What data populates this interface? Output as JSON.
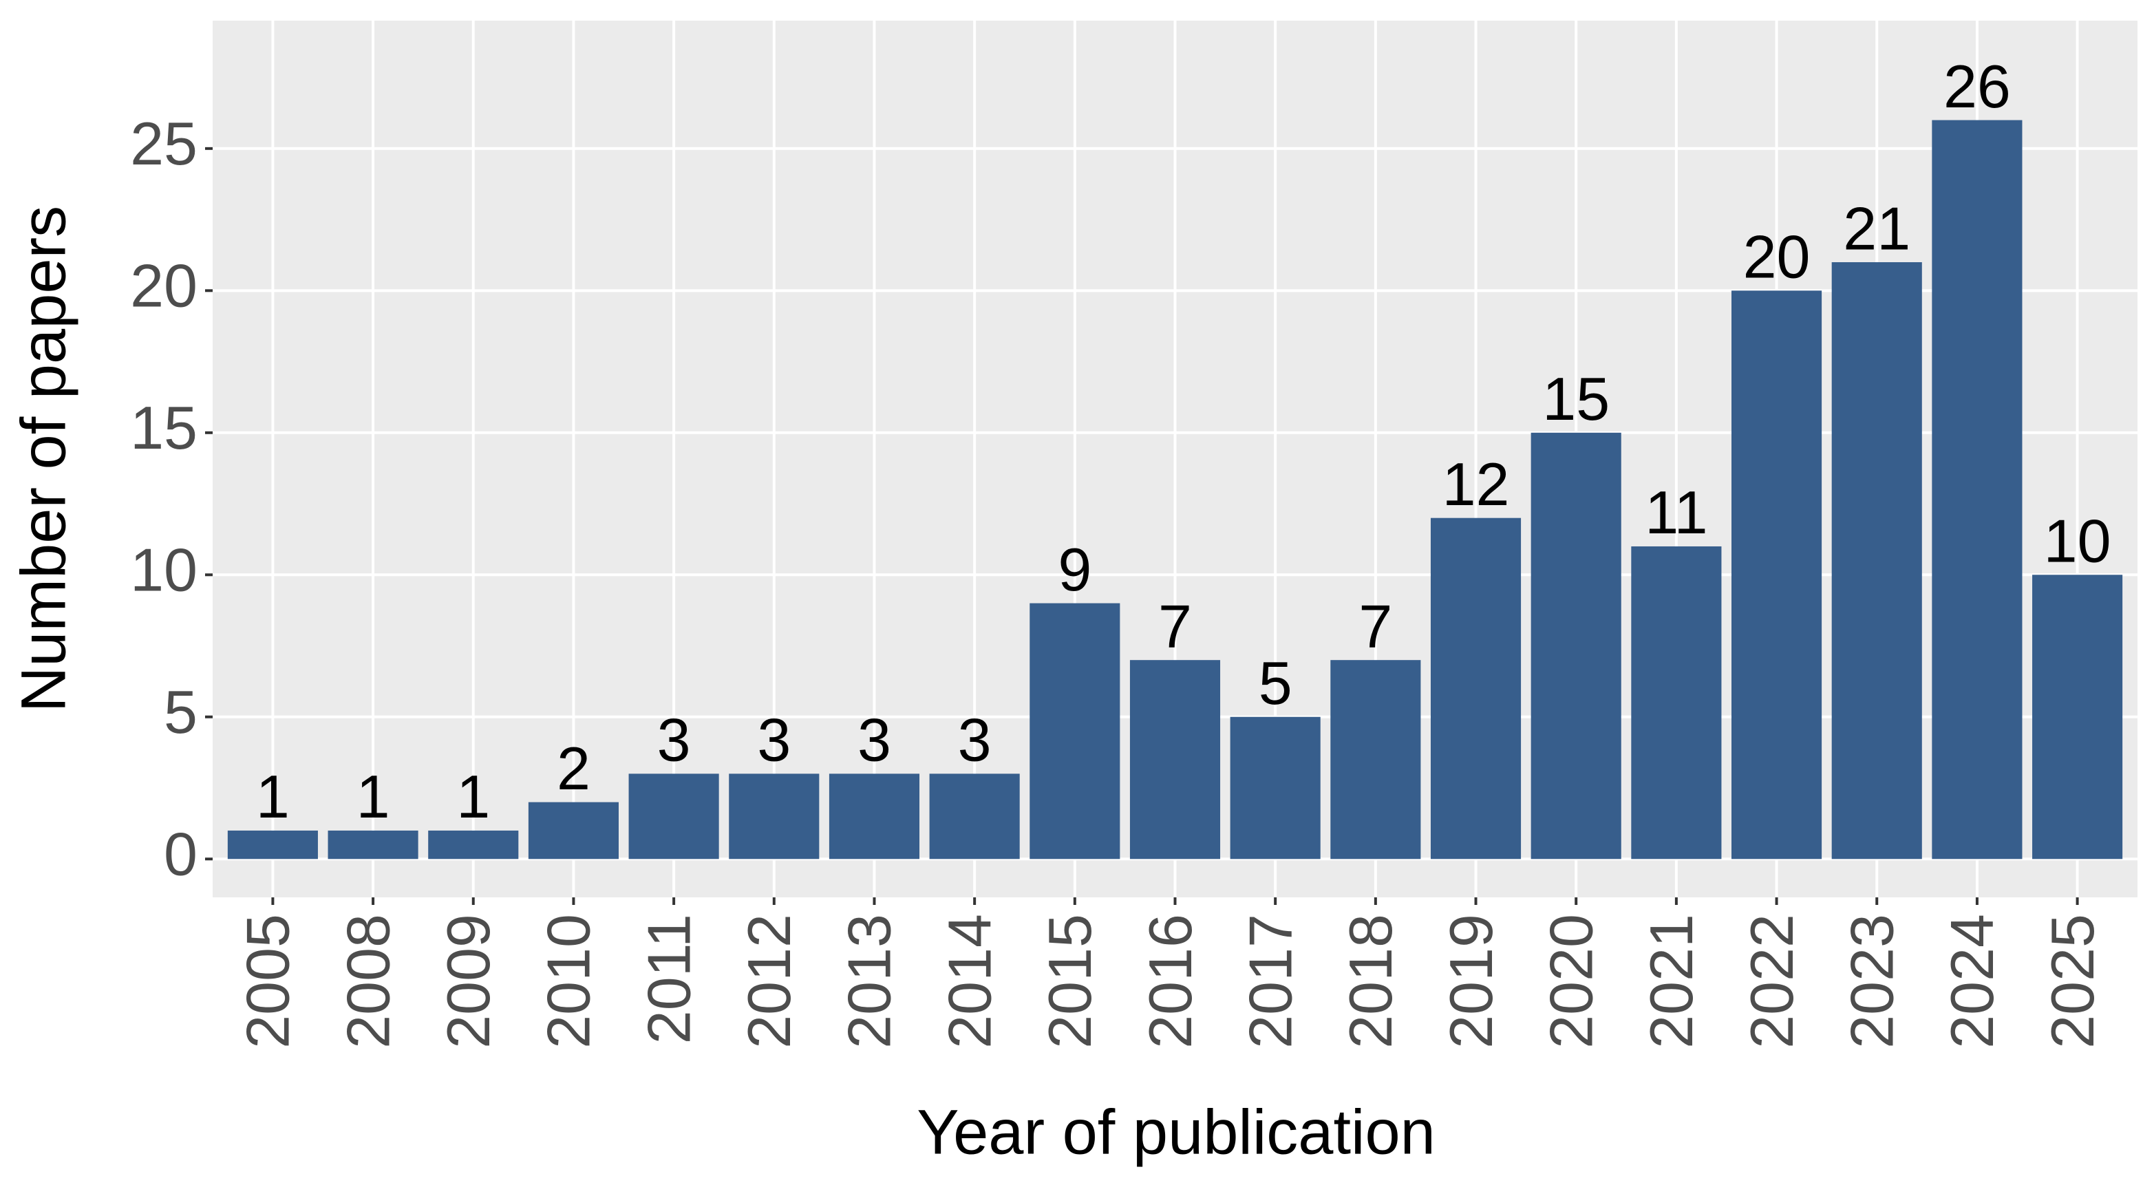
{
  "chart_data": {
    "type": "bar",
    "categories": [
      "2005",
      "2008",
      "2009",
      "2010",
      "2011",
      "2012",
      "2013",
      "2014",
      "2015",
      "2016",
      "2017",
      "2018",
      "2019",
      "2020",
      "2021",
      "2022",
      "2023",
      "2024",
      "2025"
    ],
    "values": [
      1,
      1,
      1,
      2,
      3,
      3,
      3,
      3,
      9,
      7,
      5,
      7,
      12,
      15,
      11,
      20,
      21,
      26,
      10
    ],
    "color": "#375e8c",
    "x_label": "Year of publication",
    "y_label": "Number of papers",
    "ylim": [
      -1.35,
      29.5
    ],
    "yticks": [
      0,
      5,
      10,
      15,
      20,
      25
    ],
    "grid": true
  }
}
